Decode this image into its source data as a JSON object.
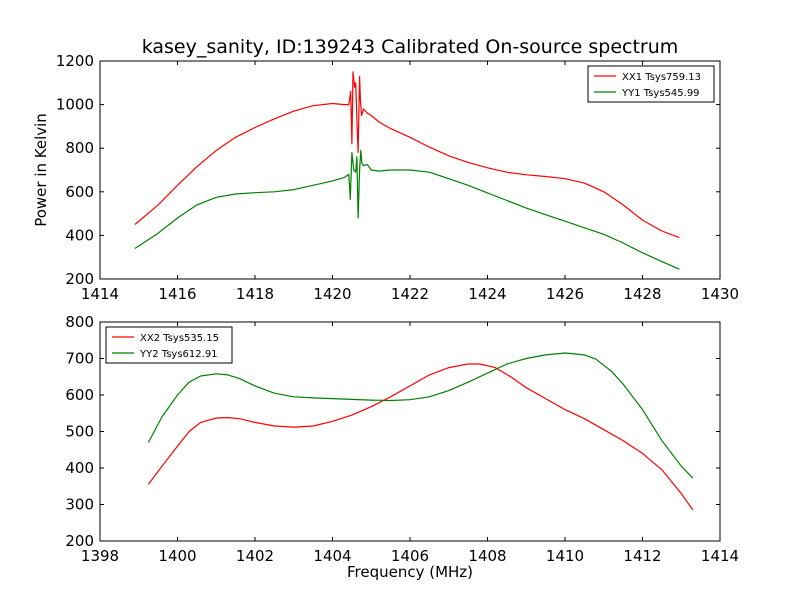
{
  "title": "kasey_sanity, ID:139243 Calibrated On-source spectrum",
  "colors": {
    "red": "#ff0000",
    "green": "#008000"
  },
  "chart_data": [
    {
      "type": "line",
      "ylabel": "Power in Kelvin",
      "xlabel": "",
      "xlim": [
        1414,
        1430
      ],
      "ylim": [
        200,
        1200
      ],
      "xticks": [
        1414,
        1416,
        1418,
        1420,
        1422,
        1424,
        1426,
        1428,
        1430
      ],
      "yticks": [
        200,
        400,
        600,
        800,
        1000,
        1200
      ],
      "legend": "top-right",
      "series": [
        {
          "name": "XX1 Tsys759.13",
          "color": "#ff0000",
          "x": [
            1414.9,
            1415.5,
            1416.0,
            1416.5,
            1417.0,
            1417.5,
            1418.0,
            1418.5,
            1419.0,
            1419.5,
            1420.0,
            1420.3,
            1420.42,
            1420.47,
            1420.5,
            1420.53,
            1420.57,
            1420.6,
            1420.63,
            1420.66,
            1420.7,
            1420.72,
            1420.75,
            1420.8,
            1420.9,
            1421.0,
            1421.2,
            1421.5,
            1422.0,
            1422.5,
            1423.0,
            1423.5,
            1424.0,
            1424.5,
            1425.0,
            1425.5,
            1426.0,
            1426.5,
            1427.0,
            1427.5,
            1428.0,
            1428.5,
            1428.95
          ],
          "y": [
            450,
            540,
            630,
            715,
            790,
            850,
            895,
            935,
            970,
            995,
            1005,
            1000,
            1000,
            1060,
            820,
            1150,
            1080,
            1100,
            930,
            780,
            1130,
            1020,
            950,
            980,
            960,
            950,
            920,
            890,
            850,
            805,
            765,
            735,
            710,
            690,
            678,
            670,
            660,
            640,
            600,
            540,
            470,
            420,
            390
          ]
        },
        {
          "name": "YY1 Tsys545.99",
          "color": "#008000",
          "x": [
            1414.9,
            1415.5,
            1416.0,
            1416.5,
            1417.0,
            1417.5,
            1418.0,
            1418.5,
            1419.0,
            1419.5,
            1420.0,
            1420.3,
            1420.42,
            1420.46,
            1420.5,
            1420.55,
            1420.6,
            1420.63,
            1420.66,
            1420.7,
            1420.73,
            1420.76,
            1420.8,
            1420.9,
            1421.0,
            1421.2,
            1421.5,
            1422.0,
            1422.5,
            1423.0,
            1423.5,
            1424.0,
            1424.5,
            1425.0,
            1425.5,
            1426.0,
            1426.5,
            1427.0,
            1427.5,
            1428.0,
            1428.5,
            1428.95
          ],
          "y": [
            340,
            410,
            480,
            540,
            575,
            590,
            596,
            600,
            610,
            630,
            650,
            665,
            680,
            565,
            780,
            700,
            690,
            760,
            480,
            700,
            790,
            730,
            720,
            725,
            700,
            695,
            700,
            700,
            690,
            660,
            630,
            595,
            560,
            525,
            495,
            465,
            435,
            405,
            365,
            320,
            280,
            245
          ]
        }
      ]
    },
    {
      "type": "line",
      "ylabel": "",
      "xlabel": "Frequency (MHz)",
      "xlim": [
        1398,
        1414
      ],
      "ylim": [
        200,
        800
      ],
      "xticks": [
        1398,
        1400,
        1402,
        1404,
        1406,
        1408,
        1410,
        1412,
        1414
      ],
      "yticks": [
        200,
        300,
        400,
        500,
        600,
        700,
        800
      ],
      "legend": "top-left",
      "series": [
        {
          "name": "XX2 Tsys535.15",
          "color": "#ff0000",
          "x": [
            1399.25,
            1399.6,
            1400.0,
            1400.3,
            1400.6,
            1401.0,
            1401.3,
            1401.6,
            1402.0,
            1402.5,
            1403.0,
            1403.5,
            1404.0,
            1404.5,
            1405.0,
            1405.5,
            1406.0,
            1406.5,
            1407.0,
            1407.5,
            1407.8,
            1408.2,
            1408.6,
            1409.0,
            1409.5,
            1410.0,
            1410.5,
            1411.0,
            1411.5,
            1412.0,
            1412.5,
            1413.0,
            1413.3
          ],
          "y": [
            355,
            405,
            460,
            500,
            525,
            537,
            538,
            535,
            525,
            515,
            512,
            515,
            528,
            545,
            568,
            595,
            625,
            655,
            675,
            685,
            685,
            675,
            650,
            620,
            590,
            560,
            535,
            505,
            475,
            440,
            395,
            330,
            285
          ]
        },
        {
          "name": "YY2 Tsys612.91",
          "color": "#008000",
          "x": [
            1399.25,
            1399.6,
            1400.0,
            1400.3,
            1400.6,
            1401.0,
            1401.3,
            1401.6,
            1402.0,
            1402.5,
            1403.0,
            1403.5,
            1404.0,
            1404.5,
            1405.0,
            1405.5,
            1406.0,
            1406.5,
            1407.0,
            1407.5,
            1408.0,
            1408.5,
            1409.0,
            1409.5,
            1410.0,
            1410.5,
            1410.8,
            1411.2,
            1411.5,
            1412.0,
            1412.5,
            1413.0,
            1413.3
          ],
          "y": [
            470,
            540,
            600,
            635,
            652,
            658,
            655,
            645,
            625,
            605,
            595,
            592,
            590,
            588,
            586,
            585,
            587,
            595,
            612,
            635,
            660,
            685,
            700,
            710,
            715,
            710,
            698,
            665,
            630,
            560,
            475,
            405,
            372
          ]
        }
      ]
    }
  ]
}
